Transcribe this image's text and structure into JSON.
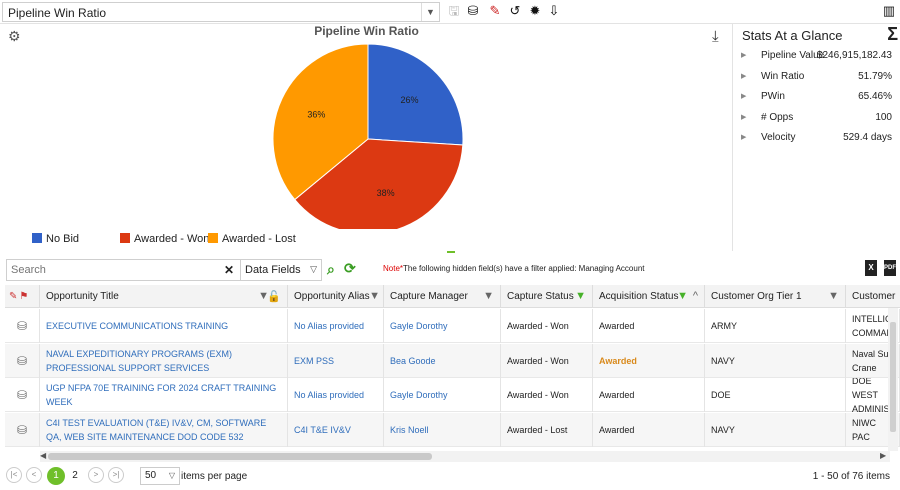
{
  "app": {
    "report_title": "Pipeline Win Ratio"
  },
  "toolbar_icons": [
    "save-icon",
    "save-as-icon",
    "chart-edit-icon",
    "undo-icon",
    "settings-gear-icon",
    "export-file-icon",
    "bar-chart-icon"
  ],
  "chart_data": {
    "type": "pie",
    "title": "Pipeline Win Ratio",
    "slices": [
      {
        "name": "No Bid",
        "value": 26,
        "label": "26%",
        "color": "#3061c8"
      },
      {
        "name": "Awarded - Won",
        "value": 38,
        "label": "38%",
        "color": "#dc3912"
      },
      {
        "name": "Awarded - Lost",
        "value": 36,
        "label": "36%",
        "color": "#ff9900"
      }
    ],
    "legend_position": "bottom-left"
  },
  "stats": {
    "title": "Stats At a Glance",
    "items": [
      {
        "label": "Pipeline Value",
        "value": "$246,915,182.43"
      },
      {
        "label": "Win Ratio",
        "value": "51.79%"
      },
      {
        "label": "PWin",
        "value": "65.46%"
      },
      {
        "label": "# Opps",
        "value": "100"
      },
      {
        "label": "Velocity",
        "value": "529.4 days"
      }
    ]
  },
  "search": {
    "placeholder": "Search",
    "fields_label": "Data Fields"
  },
  "note": {
    "prefix": "Note*",
    "text": "The following hidden field(s) have a filter applied: Managing Account"
  },
  "columns": [
    {
      "label": "Opportunity Title"
    },
    {
      "label": "Opportunity Alias"
    },
    {
      "label": "Capture Manager"
    },
    {
      "label": "Capture Status"
    },
    {
      "label": "Acquisition Status"
    },
    {
      "label": "Customer Org Tier 1"
    },
    {
      "label": "Customer"
    }
  ],
  "rows": [
    {
      "title": "EXECUTIVE COMMUNICATIONS TRAINING",
      "alias": "No Alias provided",
      "manager": "Gayle Dorothy",
      "capture": "Awarded - Won",
      "acq": "Awarded",
      "tier1": "ARMY",
      "customer": "INTELLIGE COMMAN"
    },
    {
      "title": "NAVAL EXPEDITIONARY PROGRAMS (EXM) PROFESSIONAL SUPPORT SERVICES",
      "alias": "EXM PSS",
      "manager": "Bea Goode",
      "capture": "Awarded - Won",
      "acq": "Awarded",
      "tier1": "NAVY",
      "customer": "Naval Sur Crane"
    },
    {
      "title": "UGP NFPA 70E TRAINING FOR 2024 CRAFT TRAINING WEEK",
      "alias": "No Alias provided",
      "manager": "Gayle Dorothy",
      "capture": "Awarded - Won",
      "acq": "Awarded",
      "tier1": "DOE",
      "customer": "DOE WEST ADMINIST"
    },
    {
      "title": "C4I TEST EVALUATION (T&E) IV&V, CM, SOFTWARE QA, WEB SITE MAINTENANCE DOD CODE 532",
      "alias": "C4I T&E IV&V",
      "manager": "Kris Noell",
      "capture": "Awarded - Lost",
      "acq": "Awarded",
      "tier1": "NAVY",
      "customer": "NIWC PAC"
    }
  ],
  "pager": {
    "pages": [
      "1",
      "2"
    ],
    "active": "1",
    "page_size": "50",
    "per_page_label": "items per page",
    "count_text": "1 - 50 of 76 items"
  }
}
